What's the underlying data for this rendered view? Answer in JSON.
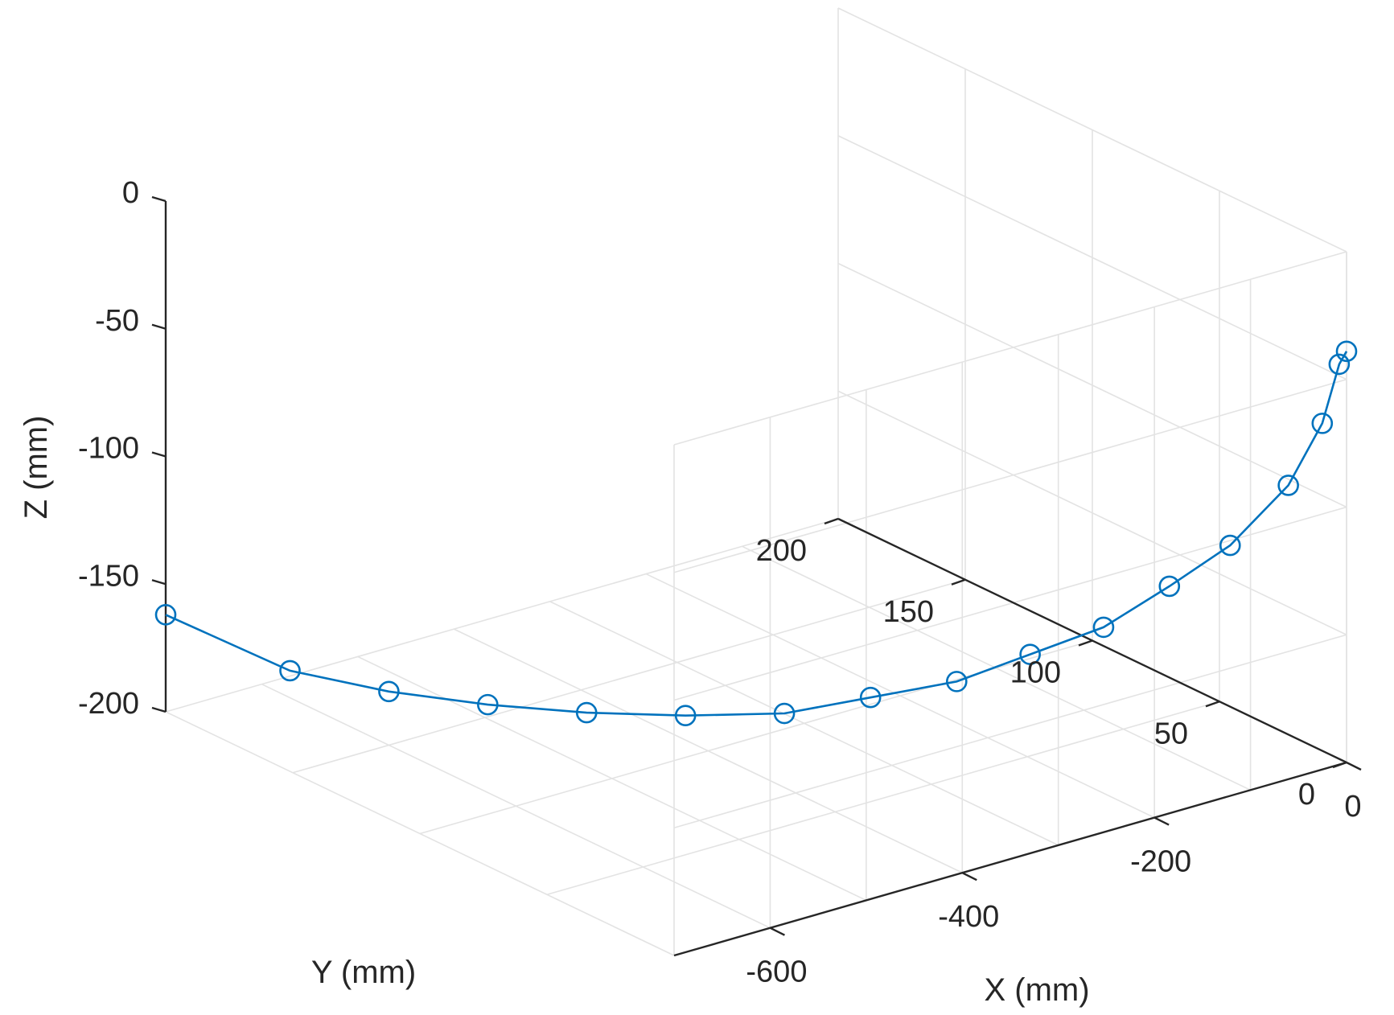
{
  "chart_data": {
    "type": "line3d",
    "xlabel": "X (mm)",
    "ylabel": "Y (mm)",
    "zlabel": "Z (mm)",
    "xlim": [
      -700,
      0
    ],
    "ylim": [
      0,
      200
    ],
    "zlim": [
      -200,
      0
    ],
    "xticks": [
      -600,
      -400,
      -200,
      0
    ],
    "yticks": [
      0,
      50,
      100,
      150,
      200
    ],
    "zticks": [
      -200,
      -150,
      -100,
      -50,
      0
    ],
    "xtick_labels": [
      "-600",
      "-400",
      "-200",
      "0"
    ],
    "ytick_labels": [
      "0",
      "50",
      "100",
      "150",
      "200"
    ],
    "ztick_labels": [
      "-200",
      "-150",
      "-100",
      "-50",
      "0"
    ],
    "grid": true,
    "marker": "circle",
    "color": "#0072BD",
    "series": [
      {
        "x": [
          -700,
          -650,
          -600,
          -550,
          -500,
          -450,
          -400,
          -350,
          -300,
          -250,
          -200,
          -150,
          -100,
          -50,
          -20,
          -5,
          0
        ],
        "y": [
          200,
          170,
          150,
          130,
          110,
          90,
          70,
          55,
          40,
          30,
          20,
          13,
          8,
          4,
          2,
          1,
          0
        ],
        "z": [
          -162,
          -175,
          -179,
          -180,
          -179,
          -176,
          -171,
          -163,
          -155,
          -145,
          -135,
          -121,
          -108,
          -88,
          -66,
          -44,
          -39
        ]
      }
    ]
  }
}
